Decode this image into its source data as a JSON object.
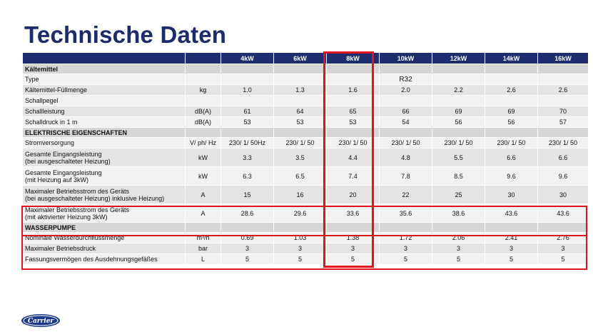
{
  "title": "Technische Daten",
  "columns": [
    "",
    "",
    "4kW",
    "6kW",
    "8kW",
    "10kW",
    "12kW",
    "14kW",
    "16kW"
  ],
  "rows": [
    {
      "kind": "section",
      "label": "Kältemittel",
      "unit": "",
      "values": [
        "",
        "",
        "",
        "",
        "",
        "",
        ""
      ]
    },
    {
      "kind": "single",
      "label": "Type",
      "unit": "",
      "values": [
        "",
        "",
        "",
        "",
        "",
        "",
        ""
      ],
      "span_value": "R32"
    },
    {
      "kind": "single",
      "label": "Kältemittel-Füllmenge",
      "unit": "kg",
      "values": [
        "1.0",
        "1.3",
        "1.6",
        "2.0",
        "2.2",
        "2.6",
        "2.6"
      ]
    },
    {
      "kind": "single",
      "label": "Schallpegel",
      "unit": "",
      "values": [
        "",
        "",
        "",
        "",
        "",
        "",
        ""
      ]
    },
    {
      "kind": "single",
      "label": "Schallleistung",
      "unit": "dB(A)",
      "values": [
        "61",
        "64",
        "65",
        "66",
        "69",
        "69",
        "70"
      ]
    },
    {
      "kind": "single",
      "label": "Schalldruck in 1 m",
      "unit": "dB(A)",
      "values": [
        "53",
        "53",
        "53",
        "54",
        "56",
        "56",
        "57"
      ]
    },
    {
      "kind": "section",
      "label": "ELEKTRISCHE EIGENSCHAFTEN",
      "unit": "",
      "values": [
        "",
        "",
        "",
        "",
        "",
        "",
        ""
      ]
    },
    {
      "kind": "single",
      "label": "Stromversorgung",
      "unit": "V/ ph/ Hz",
      "values": [
        "230/ 1/ 50Hz",
        "230/ 1/ 50",
        "230/ 1/ 50",
        "230/ 1/ 50",
        "230/ 1/ 50",
        "230/ 1/ 50",
        "230/ 1/ 50"
      ]
    },
    {
      "kind": "double",
      "label": "Gesamte Eingangsleistung",
      "label2": "(bei ausgeschalteter Heizung)",
      "unit": "kW",
      "values": [
        "3.3",
        "3.5",
        "4.4",
        "4.8",
        "5.5",
        "6.6",
        "6.6"
      ]
    },
    {
      "kind": "double",
      "label": "Gesamte Eingangsleistung",
      "label2": "(mit Heizung auf 3kW)",
      "unit": "kW",
      "values": [
        "6.3",
        "6.5",
        "7.4",
        "7.8",
        "8.5",
        "9.6",
        "9.6"
      ]
    },
    {
      "kind": "double",
      "label": "Maximaler Betriebsstrom des Geräts",
      "label2": "(bei ausgeschalteter Heizung) inklusive Heizung)",
      "unit": "A",
      "values": [
        "15",
        "16",
        "20",
        "22",
        "25",
        "30",
        "30"
      ]
    },
    {
      "kind": "double",
      "label": "Maximaler Betriebsstrom des Geräts",
      "label2": "(mit aktivierter Heizung 3kW)",
      "unit": "A",
      "values": [
        "28.6",
        "29.6",
        "33.6",
        "35.6",
        "38.6",
        "43.6",
        "43.6"
      ]
    },
    {
      "kind": "section",
      "label": "WASSERPUMPE",
      "unit": "",
      "values": [
        "",
        "",
        "",
        "",
        "",
        "",
        ""
      ]
    },
    {
      "kind": "single",
      "label": "Nominale Wasserdurchflussmenge",
      "unit": "m³/h",
      "values": [
        "0.69",
        "1.03",
        "1.38",
        "1.72",
        "2.06",
        "2.41",
        "2.76"
      ]
    },
    {
      "kind": "single",
      "label": "Maximaler Betriebsdruck",
      "unit": "bar",
      "values": [
        "3",
        "3",
        "3",
        "3",
        "3",
        "3",
        "3"
      ]
    },
    {
      "kind": "single",
      "label": "Fassungsvermögen des Ausdehnungsgefäßes",
      "unit": "L",
      "values": [
        "5",
        "5",
        "5",
        "5",
        "5",
        "5",
        "5"
      ]
    }
  ],
  "logo_text": "Carrier",
  "colors": {
    "header_bg": "#1d2d6e",
    "title": "#1d2a6b",
    "highlight": "#e0141c",
    "logo": "#1d3a8a"
  }
}
